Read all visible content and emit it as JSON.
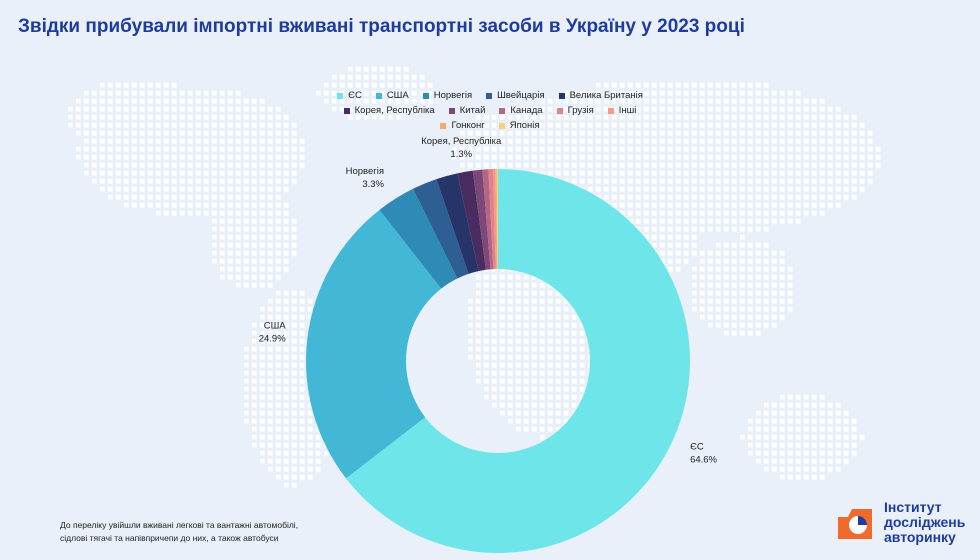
{
  "title": "Звідки прибували імпортні вживані транспортні засоби в Україну у 2023 році",
  "footnote": {
    "line1": "До переліку увійшли вживані легкові та вантажні автомобілі,",
    "line2": "сідлові тягачі та напівпричепи до них, а також автобуси"
  },
  "logo": {
    "line1": "Інститут",
    "line2": "досліджень",
    "line3": "авторинку"
  },
  "colors": {
    "title": "#1f3b9e",
    "background": "#e9f0f9",
    "map_dots": "#ffffff",
    "logo_orange": "#f06a2c"
  },
  "chart_data": {
    "type": "donut",
    "legend_position": "top",
    "slices": [
      {
        "name": "ЄС",
        "value": 64.6,
        "color": "#6ee6e9",
        "label": "ЄС",
        "label_value": "64.6%"
      },
      {
        "name": "США",
        "value": 24.9,
        "color": "#42b8d6",
        "label": "США",
        "label_value": "24.9%"
      },
      {
        "name": "Норвегія",
        "value": 3.3,
        "color": "#2d8bb5",
        "label": "Норвегія",
        "label_value": "3.3%"
      },
      {
        "name": "Швейцарія",
        "value": 2.1,
        "color": "#2e5f94",
        "label": "",
        "label_value": ""
      },
      {
        "name": "Велика Британія",
        "value": 1.8,
        "color": "#27346a",
        "label": "",
        "label_value": ""
      },
      {
        "name": "Корея, Республіка",
        "value": 1.3,
        "color": "#4a2d60",
        "label": "Корея, Республіка",
        "label_value": "1.3%"
      },
      {
        "name": "Китай",
        "value": 0.8,
        "color": "#7d4778",
        "label": "",
        "label_value": ""
      },
      {
        "name": "Канада",
        "value": 0.5,
        "color": "#b46685",
        "label": "",
        "label_value": ""
      },
      {
        "name": "Грузія",
        "value": 0.4,
        "color": "#e2838c",
        "label": "",
        "label_value": ""
      },
      {
        "name": "Інші",
        "value": 0.2,
        "color": "#f49a87",
        "label": "",
        "label_value": ""
      },
      {
        "name": "Гонконг",
        "value": 0.1,
        "color": "#f6ab6c",
        "label": "",
        "label_value": ""
      },
      {
        "name": "Японія",
        "value": 0.1,
        "color": "#f6d27a",
        "label": "",
        "label_value": ""
      }
    ]
  }
}
